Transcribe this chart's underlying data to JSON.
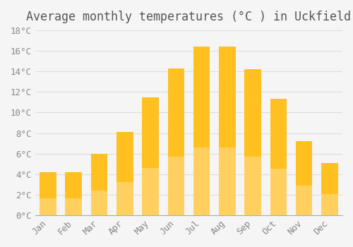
{
  "title": "Average monthly temperatures (°C ) in Uckfield",
  "months": [
    "Jan",
    "Feb",
    "Mar",
    "Apr",
    "May",
    "Jun",
    "Jul",
    "Aug",
    "Sep",
    "Oct",
    "Nov",
    "Dec"
  ],
  "temperatures": [
    4.2,
    4.2,
    6.0,
    8.1,
    11.5,
    14.3,
    16.4,
    16.4,
    14.2,
    11.3,
    7.2,
    5.1
  ],
  "bar_color_top": "#FFC020",
  "bar_color_bottom": "#FFD060",
  "background_color": "#F5F5F5",
  "ylim": [
    0,
    18
  ],
  "ytick_step": 2,
  "grid_color": "#DDDDDD",
  "title_fontsize": 12,
  "tick_fontsize": 9,
  "tick_font_family": "monospace"
}
